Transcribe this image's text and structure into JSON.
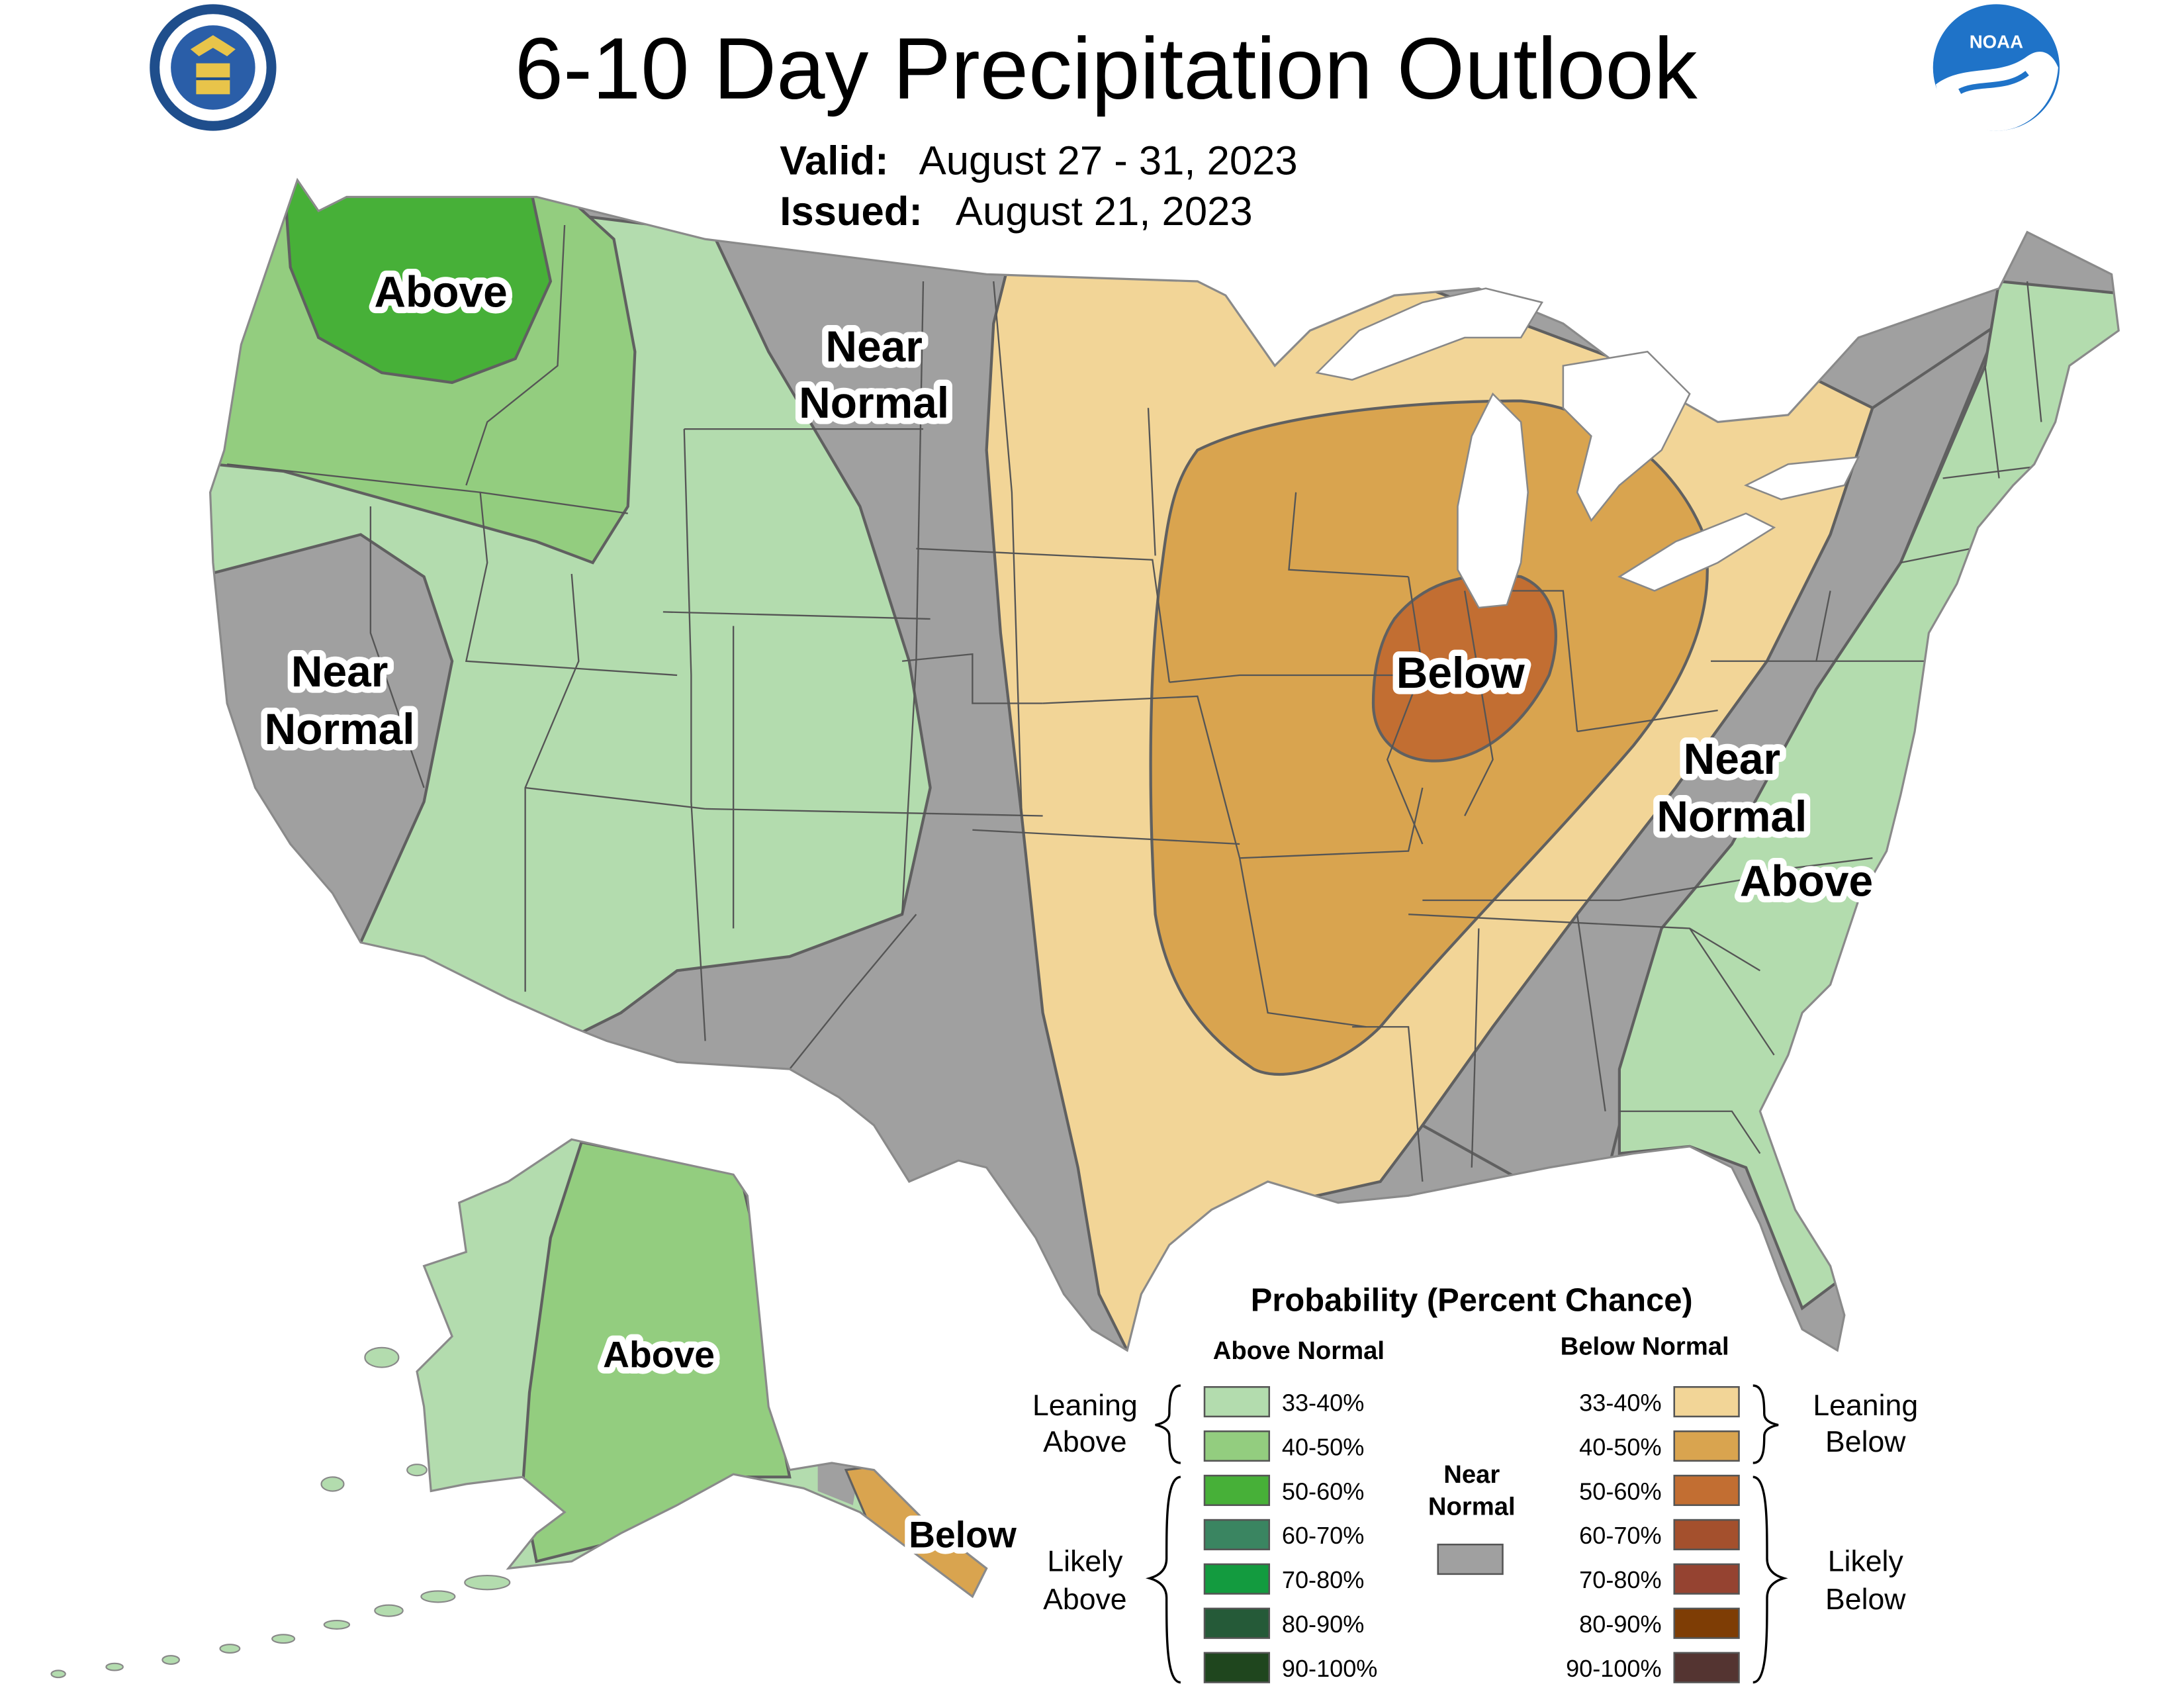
{
  "title": "6-10 Day Precipitation Outlook",
  "valid": {
    "label": "Valid:",
    "value": "August 27 - 31, 2023"
  },
  "issued": {
    "label": "Issued:",
    "value": "August 21, 2023"
  },
  "logos": {
    "left": "department-of-commerce-seal",
    "right": "noaa-logo",
    "noaa_text": "NOAA"
  },
  "region_labels": {
    "nw_above": "Above",
    "rockies_near": [
      "Near",
      "Normal"
    ],
    "ca_near": [
      "Near",
      "Normal"
    ],
    "mw_below": "Below",
    "se_near": [
      "Near",
      "Normal"
    ],
    "se_above": "Above",
    "ak_above": "Above",
    "ak_below": "Below"
  },
  "legend": {
    "title": "Probability (Percent Chance)",
    "above_header": "Above Normal",
    "below_header": "Below Normal",
    "near_label": [
      "Near",
      "Normal"
    ],
    "leaning_above": [
      "Leaning",
      "Above"
    ],
    "likely_above": [
      "Likely",
      "Above"
    ],
    "leaning_below": [
      "Leaning",
      "Below"
    ],
    "likely_below": [
      "Likely",
      "Below"
    ],
    "bins": [
      "33-40%",
      "40-50%",
      "50-60%",
      "60-70%",
      "70-80%",
      "80-90%",
      "90-100%"
    ],
    "above_colors": [
      "#b3dcae",
      "#93cd7f",
      "#47b038",
      "#3a8561",
      "#139b3f",
      "#255a38",
      "#1f461e"
    ],
    "below_colors": [
      "#f2d597",
      "#d9a44f",
      "#c26e32",
      "#a4502d",
      "#954331",
      "#7e3d05",
      "#543431"
    ],
    "near_color": "#a0a0a0"
  },
  "colors": {
    "near_normal": "#a0a0a0",
    "above_33_40": "#b3dcae",
    "above_40_50": "#93cd7f",
    "above_50_60": "#47b038",
    "below_33_40": "#f2d597",
    "below_40_50": "#d9a44f",
    "below_50_60": "#c26e32"
  }
}
